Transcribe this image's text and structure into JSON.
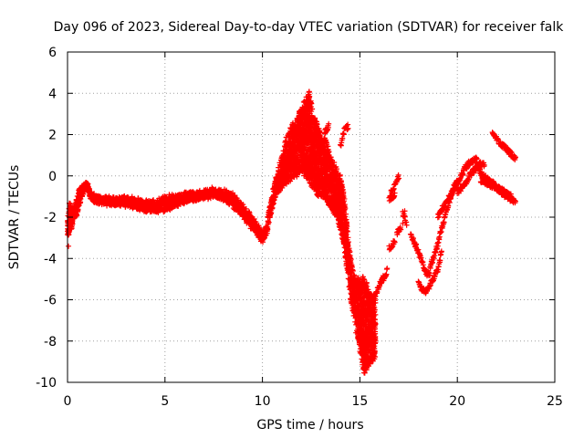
{
  "chart_data": {
    "type": "scatter",
    "title": "Day 096 of 2023, Sidereal Day-to-day VTEC variation (SDTVAR) for receiver falk",
    "xlabel": "GPS time / hours",
    "ylabel": "SDTVAR / TECUs",
    "xlim": [
      0,
      25
    ],
    "ylim": [
      -10,
      6
    ],
    "xticks": [
      0,
      5,
      10,
      15,
      20,
      25
    ],
    "yticks": [
      -10,
      -8,
      -6,
      -4,
      -2,
      0,
      2,
      4,
      6
    ],
    "xtick_labels": [
      "0",
      "5",
      "10",
      "15",
      "20",
      "25"
    ],
    "ytick_labels": [
      "-10",
      "-8",
      "-6",
      "-4",
      "-2",
      "0",
      "2",
      "4",
      "6"
    ],
    "grid": true,
    "marker": "plus",
    "color": "#ff0000",
    "series": [
      {
        "name": "falk",
        "envelope_hours": [
          0,
          0.05,
          0.1,
          0.2,
          0.3,
          0.45,
          0.6,
          0.8,
          1.0,
          1.2,
          1.5,
          2.0,
          2.5,
          3.0,
          3.5,
          4.0,
          4.5,
          5.0,
          5.5,
          6.0,
          6.5,
          7.0,
          7.5,
          8.0,
          8.5,
          9.0,
          9.5,
          9.8,
          10.0,
          10.2,
          10.4,
          10.6,
          10.8,
          11.0,
          11.2,
          11.5,
          11.8,
          12.0,
          12.2,
          12.4,
          12.6,
          12.8,
          13.0,
          13.2,
          13.4,
          13.6,
          13.8,
          14.0,
          14.2,
          14.4,
          14.6,
          14.8,
          15.0,
          15.2,
          15.4,
          15.6,
          15.8
        ],
        "envelope_low": [
          -2.9,
          -3.5,
          -2.5,
          -2.6,
          -2.2,
          -2.0,
          -1.5,
          -0.9,
          -0.6,
          -1.1,
          -1.3,
          -1.4,
          -1.4,
          -1.5,
          -1.6,
          -1.7,
          -1.8,
          -1.7,
          -1.5,
          -1.3,
          -1.2,
          -1.1,
          -1.0,
          -1.2,
          -1.5,
          -2.0,
          -2.6,
          -3.0,
          -3.2,
          -3.0,
          -2.0,
          -1.2,
          -0.8,
          -0.6,
          -0.4,
          -0.2,
          0.0,
          0.2,
          0.0,
          -0.3,
          -0.6,
          -0.9,
          -1.0,
          -1.1,
          -1.4,
          -1.7,
          -2.0,
          -2.6,
          -3.5,
          -5.0,
          -6.6,
          -7.3,
          -8.5,
          -9.6,
          -9.3,
          -9.0,
          -8.8
        ],
        "envelope_high": [
          -2.0,
          -1.7,
          -1.2,
          -1.5,
          -1.6,
          -1.2,
          -0.6,
          -0.4,
          -0.3,
          -0.8,
          -1.0,
          -1.0,
          -1.1,
          -1.0,
          -1.1,
          -1.2,
          -1.2,
          -1.0,
          -0.9,
          -0.8,
          -0.8,
          -0.7,
          -0.6,
          -0.7,
          -0.9,
          -1.4,
          -2.0,
          -2.4,
          -2.8,
          -2.4,
          -1.3,
          -0.4,
          0.3,
          1.0,
          1.9,
          2.4,
          2.9,
          3.3,
          3.8,
          4.1,
          3.0,
          2.6,
          2.0,
          1.5,
          1.0,
          0.8,
          0.4,
          0.0,
          -1.0,
          -3.0,
          -4.4,
          -4.9,
          -5.0,
          -4.8,
          -5.4,
          -5.8,
          -5.7
        ],
        "segments": [
          {
            "x": [
              13.0,
              13.2,
              13.4,
              13.6
            ],
            "y": [
              1.5,
              1.8,
              1.2,
              0.2
            ]
          },
          {
            "x": [
              13.2,
              13.4
            ],
            "y": [
              2.1,
              2.4
            ]
          },
          {
            "x": [
              14.0,
              14.2,
              14.4
            ],
            "y": [
              1.4,
              2.2,
              2.4
            ]
          },
          {
            "x": [
              15.8,
              16.0,
              16.2
            ],
            "y": [
              -5.8,
              -5.3,
              -4.9
            ]
          },
          {
            "x": [
              16.2,
              16.3,
              16.4
            ],
            "y": [
              -5.0,
              -4.8,
              -4.6
            ]
          },
          {
            "x": [
              16.5,
              16.7,
              16.8
            ],
            "y": [
              -3.5,
              -3.3,
              -3.1
            ]
          },
          {
            "x": [
              16.9,
              17.0,
              17.1
            ],
            "y": [
              -2.8,
              -2.6,
              -2.5
            ]
          },
          {
            "x": [
              16.6,
              16.8,
              16.9,
              17.0
            ],
            "y": [
              -0.8,
              -0.5,
              -0.2,
              0.0
            ]
          },
          {
            "x": [
              16.5,
              16.7,
              16.8
            ],
            "y": [
              -1.1,
              -1.0,
              -0.9
            ]
          },
          {
            "x": [
              17.2,
              17.4
            ],
            "y": [
              -1.8,
              -2.3
            ]
          },
          {
            "x": [
              17.6,
              17.8,
              18.0,
              18.2,
              18.4,
              18.6
            ],
            "y": [
              -2.9,
              -3.2,
              -3.7,
              -4.2,
              -4.7,
              -4.8
            ]
          },
          {
            "x": [
              18.0,
              18.2,
              18.4,
              18.6,
              18.8,
              19.0,
              19.2
            ],
            "y": [
              -5.2,
              -5.5,
              -5.6,
              -5.3,
              -4.9,
              -4.5,
              -3.7
            ]
          },
          {
            "x": [
              18.6,
              18.8,
              19.0,
              19.2,
              19.4,
              19.6,
              19.8,
              20.0
            ],
            "y": [
              -4.4,
              -3.9,
              -3.3,
              -2.5,
              -1.9,
              -1.2,
              -0.6,
              -0.2
            ]
          },
          {
            "x": [
              19.0,
              19.2,
              19.4,
              19.6,
              19.8,
              20.0,
              20.2,
              20.4,
              20.6,
              20.8,
              21.0
            ],
            "y": [
              -2.0,
              -1.6,
              -1.4,
              -1.0,
              -0.7,
              -0.4,
              0.0,
              0.4,
              0.6,
              0.7,
              0.8
            ]
          },
          {
            "x": [
              20.0,
              20.2,
              20.4,
              20.6,
              20.8,
              21.0,
              21.2,
              21.4
            ],
            "y": [
              -0.8,
              -0.6,
              -0.4,
              0.0,
              0.2,
              0.4,
              0.6,
              0.5
            ]
          },
          {
            "x": [
              21.0,
              21.3,
              21.6,
              22.0,
              22.3,
              22.6,
              22.9
            ],
            "y": [
              0.5,
              0.0,
              -0.2,
              -0.5,
              -0.7,
              -0.9,
              -1.1
            ]
          },
          {
            "x": [
              21.2,
              21.6,
              22.0,
              22.4,
              22.8,
              23.0
            ],
            "y": [
              -0.2,
              -0.4,
              -0.6,
              -0.9,
              -1.2,
              -1.3
            ]
          },
          {
            "x": [
              21.8,
              22.0,
              22.2,
              22.4,
              22.6,
              22.8,
              23.0
            ],
            "y": [
              2.1,
              1.8,
              1.6,
              1.4,
              1.2,
              1.0,
              0.8
            ]
          }
        ],
        "points": [
          {
            "x": 17.3,
            "y": -1.7
          },
          {
            "x": 17.2,
            "y": -2.3
          },
          {
            "x": 15.0,
            "y": -8.5
          },
          {
            "x": 14.8,
            "y": -7.6
          }
        ]
      }
    ]
  }
}
